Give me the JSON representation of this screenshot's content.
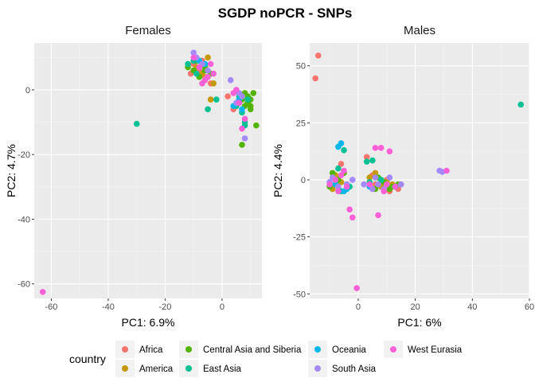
{
  "title": "SGDP noPCR - SNPs",
  "legend": {
    "title": "country",
    "position": "bottom",
    "entries": [
      {
        "name": "Africa",
        "color": "#F8766D"
      },
      {
        "name": "America",
        "color": "#C49A00"
      },
      {
        "name": "Central Asia and Siberia",
        "color": "#53B400"
      },
      {
        "name": "East Asia",
        "color": "#00C094"
      },
      {
        "name": "Oceania",
        "color": "#00B6EB"
      },
      {
        "name": "South Asia",
        "color": "#A58AFF"
      },
      {
        "name": "West Eurasia",
        "color": "#FB61D7"
      }
    ]
  },
  "chart_data": [
    {
      "type": "scatter",
      "title": "Females",
      "xlabel": "PC1: 6.9%",
      "ylabel": "PC2: 4.7%",
      "xlim": [
        -66,
        14
      ],
      "ylim": [
        -64.5,
        14.5
      ],
      "x_ticks": [
        -60,
        -40,
        -20,
        0
      ],
      "y_ticks": [
        0,
        -20,
        -40,
        -60
      ],
      "grid": true,
      "series": [
        {
          "name": "Africa",
          "points": [
            [
              -10,
              8
            ],
            [
              -8,
              6
            ],
            [
              -6,
              4
            ],
            [
              -4,
              2
            ],
            [
              -11,
              5
            ],
            [
              2,
              -2
            ],
            [
              6,
              -4
            ],
            [
              -7,
              9
            ],
            [
              4,
              -6
            ]
          ]
        },
        {
          "name": "America",
          "points": [
            [
              -9,
              7
            ],
            [
              -7,
              5
            ],
            [
              -5,
              10
            ],
            [
              -4,
              -3
            ],
            [
              -6,
              3
            ],
            [
              5,
              -5
            ],
            [
              -8,
              9
            ],
            [
              -3,
              2
            ]
          ]
        },
        {
          "name": "Central Asia and Siberia",
          "points": [
            [
              -12,
              7
            ],
            [
              -10,
              6
            ],
            [
              -8,
              4
            ],
            [
              -6,
              7
            ],
            [
              -4,
              5
            ],
            [
              8,
              -1
            ],
            [
              9,
              -2
            ],
            [
              10,
              -3
            ],
            [
              9,
              -4
            ],
            [
              8,
              -5
            ],
            [
              10,
              -5
            ],
            [
              11,
              -1
            ],
            [
              7,
              -3
            ],
            [
              10,
              -6
            ],
            [
              12,
              -11
            ],
            [
              7,
              -17
            ],
            [
              -6,
              6
            ],
            [
              -9,
              9
            ]
          ]
        },
        {
          "name": "East Asia",
          "points": [
            [
              -12,
              8
            ],
            [
              -9,
              5
            ],
            [
              -5,
              -6
            ],
            [
              -2,
              -3
            ],
            [
              5,
              -5
            ],
            [
              7,
              -7
            ],
            [
              -30,
              -10.5
            ],
            [
              8,
              -10
            ],
            [
              9,
              -3
            ],
            [
              8,
              -11
            ],
            [
              -10,
              9
            ],
            [
              6,
              -2
            ]
          ]
        },
        {
          "name": "Oceania",
          "points": [
            [
              -8,
              9
            ],
            [
              -6,
              8
            ],
            [
              4,
              -5
            ],
            [
              7,
              -6
            ],
            [
              6,
              -3
            ]
          ]
        },
        {
          "name": "South Asia",
          "points": [
            [
              -10,
              11.5
            ],
            [
              -9,
              10
            ],
            [
              -7,
              8
            ],
            [
              3,
              3
            ],
            [
              6,
              -1
            ],
            [
              8,
              -15
            ],
            [
              -5,
              6
            ],
            [
              5,
              -4
            ],
            [
              7,
              -2
            ]
          ]
        },
        {
          "name": "West Eurasia",
          "points": [
            [
              -10,
              10
            ],
            [
              -8,
              7
            ],
            [
              -7,
              2
            ],
            [
              -5,
              4
            ],
            [
              -4,
              8
            ],
            [
              -3,
              5
            ],
            [
              5,
              0
            ],
            [
              6,
              -4
            ],
            [
              8,
              -9
            ],
            [
              7,
              -12
            ],
            [
              -63,
              -62.5
            ],
            [
              -6,
              3
            ],
            [
              4,
              -1
            ]
          ]
        }
      ]
    },
    {
      "type": "scatter",
      "title": "Males",
      "xlabel": "PC1: 6%",
      "ylabel": "PC2: 4.4%",
      "xlim": [
        -17,
        60
      ],
      "ylim": [
        -52,
        60
      ],
      "x_ticks": [
        0,
        20,
        40,
        60
      ],
      "y_ticks": [
        50,
        25,
        0,
        -25,
        -50
      ],
      "grid": true,
      "series": [
        {
          "name": "Africa",
          "points": [
            [
              -14,
              54.5
            ],
            [
              -15,
              44.5
            ],
            [
              -6,
              7
            ],
            [
              3,
              10
            ],
            [
              6,
              -2
            ],
            [
              10,
              0
            ],
            [
              13,
              -3
            ],
            [
              -8,
              1
            ],
            [
              5,
              2
            ],
            [
              14,
              -4
            ],
            [
              9,
              -1
            ],
            [
              11,
              -5
            ],
            [
              -4,
              -2
            ]
          ]
        },
        {
          "name": "America",
          "points": [
            [
              -8,
              2
            ],
            [
              -6,
              -1
            ],
            [
              4,
              1
            ],
            [
              8,
              -3
            ],
            [
              12,
              -2
            ],
            [
              -9,
              -4
            ],
            [
              6,
              3
            ],
            [
              10,
              -1
            ],
            [
              15,
              -2
            ]
          ]
        },
        {
          "name": "Central Asia and Siberia",
          "points": [
            [
              -10,
              -3
            ],
            [
              -7,
              0
            ],
            [
              -5,
              3
            ],
            [
              -4,
              -2
            ],
            [
              6,
              -4
            ],
            [
              9,
              -1
            ],
            [
              12,
              -3
            ],
            [
              14,
              -2
            ],
            [
              -9,
              3
            ],
            [
              7,
              1
            ],
            [
              11,
              -4
            ]
          ]
        },
        {
          "name": "East Asia",
          "points": [
            [
              -7,
              5
            ],
            [
              -6,
              -5
            ],
            [
              -5,
              13
            ],
            [
              -3,
              -3
            ],
            [
              4,
              -1
            ],
            [
              5,
              8.5
            ],
            [
              57,
              33
            ],
            [
              3,
              8
            ],
            [
              8,
              0
            ],
            [
              -8,
              -2
            ]
          ]
        },
        {
          "name": "Oceania",
          "points": [
            [
              -6,
              16
            ],
            [
              -7,
              14.5
            ],
            [
              -5,
              -5
            ],
            [
              -4,
              -4
            ],
            [
              -8,
              -2
            ],
            [
              4,
              -3
            ]
          ]
        },
        {
          "name": "South Asia",
          "points": [
            [
              -9,
              1
            ],
            [
              -7,
              -3
            ],
            [
              -4,
              -2
            ],
            [
              -2,
              0
            ],
            [
              2,
              -2
            ],
            [
              5,
              -4
            ],
            [
              7,
              -2
            ],
            [
              9,
              -4
            ],
            [
              11,
              1
            ],
            [
              13,
              -3
            ],
            [
              15,
              -2
            ],
            [
              28.5,
              4
            ],
            [
              29.5,
              3.5
            ],
            [
              -10,
              -1
            ],
            [
              6,
              1
            ]
          ]
        },
        {
          "name": "West Eurasia",
          "points": [
            [
              -10,
              -2
            ],
            [
              -8,
              0
            ],
            [
              -7,
              -5
            ],
            [
              -5,
              4
            ],
            [
              -4,
              -3
            ],
            [
              -3,
              -13
            ],
            [
              -2,
              -16.5
            ],
            [
              -0.5,
              -47.5
            ],
            [
              4,
              -2
            ],
            [
              6,
              14
            ],
            [
              7,
              -15.5
            ],
            [
              8,
              14
            ],
            [
              10,
              -2
            ],
            [
              11,
              12.5
            ],
            [
              13,
              -3
            ],
            [
              31,
              4
            ],
            [
              -6,
              2
            ],
            [
              9,
              -5
            ]
          ]
        }
      ]
    }
  ]
}
